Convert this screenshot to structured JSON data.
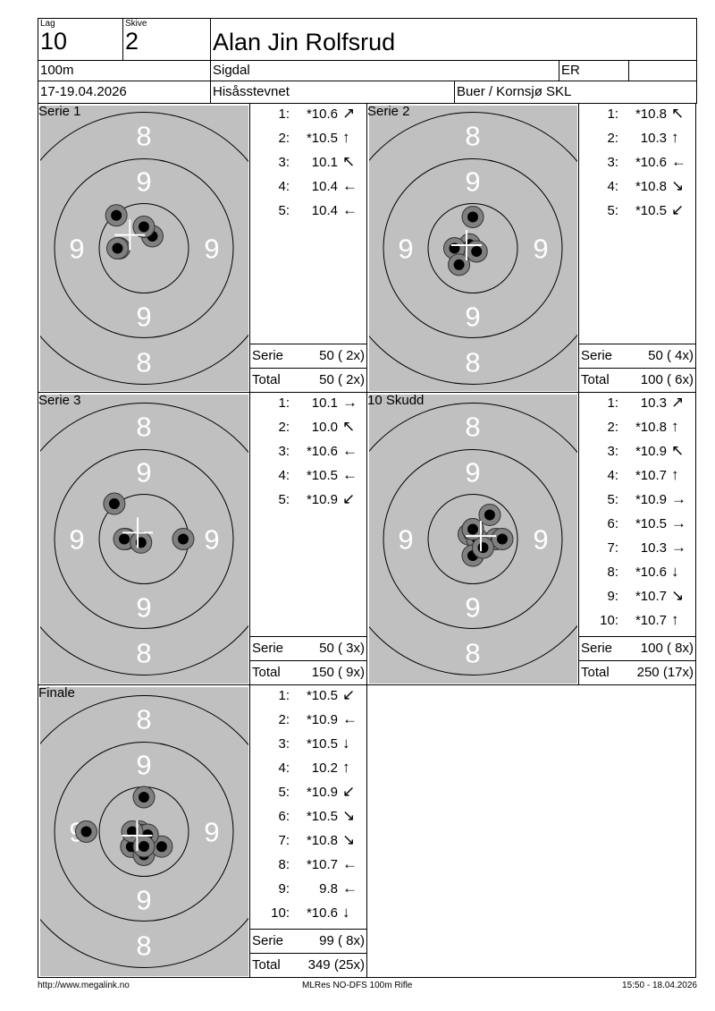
{
  "header": {
    "lag_label": "Lag",
    "lag": "10",
    "skive_label": "Skive",
    "skive": "2",
    "name": "Alan Jin Rolfsrud",
    "distance": "100m",
    "place": "Sigdal",
    "class": "ER",
    "class_extra": "",
    "date": "17-19.04.2026",
    "event": "Hisåsstevnet",
    "club": "Buer / Kornsjø SKL"
  },
  "target_labels": {
    "outer": "8",
    "inner": "9"
  },
  "colors": {
    "target": "#c0c0c0",
    "shot_ring": "#808080",
    "shot_core": "#000000",
    "cross": "#ffffff"
  },
  "panels": [
    {
      "title": "Serie 1",
      "shots": [
        {
          "n": "1:",
          "score": "*10.6",
          "dir": "↗"
        },
        {
          "n": "2:",
          "score": "*10.5",
          "dir": "↑"
        },
        {
          "n": "3:",
          "score": "10.1",
          "dir": "↖"
        },
        {
          "n": "4:",
          "score": "10.4",
          "dir": "←"
        },
        {
          "n": "5:",
          "score": "10.4",
          "dir": "←"
        }
      ],
      "serie_label": "Serie",
      "serie": "50 ( 2x)",
      "total_label": "Total",
      "total": "50 ( 2x)"
    },
    {
      "title": "Serie 2",
      "shots": [
        {
          "n": "1:",
          "score": "*10.8",
          "dir": "↖"
        },
        {
          "n": "2:",
          "score": "10.3",
          "dir": "↑"
        },
        {
          "n": "3:",
          "score": "*10.6",
          "dir": "←"
        },
        {
          "n": "4:",
          "score": "*10.8",
          "dir": "↘"
        },
        {
          "n": "5:",
          "score": "*10.5",
          "dir": "↙"
        }
      ],
      "serie_label": "Serie",
      "serie": "50 ( 4x)",
      "total_label": "Total",
      "total": "100 ( 6x)"
    },
    {
      "title": "Serie 3",
      "shots": [
        {
          "n": "1:",
          "score": "10.1",
          "dir": "→"
        },
        {
          "n": "2:",
          "score": "10.0",
          "dir": "↖"
        },
        {
          "n": "3:",
          "score": "*10.6",
          "dir": "←"
        },
        {
          "n": "4:",
          "score": "*10.5",
          "dir": "←"
        },
        {
          "n": "5:",
          "score": "*10.9",
          "dir": "↙"
        }
      ],
      "serie_label": "Serie",
      "serie": "50 ( 3x)",
      "total_label": "Total",
      "total": "150 ( 9x)"
    },
    {
      "title": "10 Skudd",
      "shots": [
        {
          "n": "1:",
          "score": "10.3",
          "dir": "↗"
        },
        {
          "n": "2:",
          "score": "*10.8",
          "dir": "↑"
        },
        {
          "n": "3:",
          "score": "*10.9",
          "dir": "↖"
        },
        {
          "n": "4:",
          "score": "*10.7",
          "dir": "↑"
        },
        {
          "n": "5:",
          "score": "*10.9",
          "dir": "→"
        },
        {
          "n": "6:",
          "score": "*10.5",
          "dir": "→"
        },
        {
          "n": "7:",
          "score": "10.3",
          "dir": "→"
        },
        {
          "n": "8:",
          "score": "*10.6",
          "dir": "↓"
        },
        {
          "n": "9:",
          "score": "*10.7",
          "dir": "↘"
        },
        {
          "n": "10:",
          "score": "*10.7",
          "dir": "↑"
        }
      ],
      "serie_label": "Serie",
      "serie": "100 ( 8x)",
      "total_label": "Total",
      "total": "250 (17x)"
    },
    {
      "title": "Finale",
      "shots": [
        {
          "n": "1:",
          "score": "*10.5",
          "dir": "↙"
        },
        {
          "n": "2:",
          "score": "*10.9",
          "dir": "←"
        },
        {
          "n": "3:",
          "score": "*10.5",
          "dir": "↓"
        },
        {
          "n": "4:",
          "score": "10.2",
          "dir": "↑"
        },
        {
          "n": "5:",
          "score": "*10.9",
          "dir": "↙"
        },
        {
          "n": "6:",
          "score": "*10.5",
          "dir": "↘"
        },
        {
          "n": "7:",
          "score": "*10.8",
          "dir": "↘"
        },
        {
          "n": "8:",
          "score": "*10.7",
          "dir": "←"
        },
        {
          "n": "9:",
          "score": "9.8",
          "dir": "←"
        },
        {
          "n": "10:",
          "score": "*10.6",
          "dir": "↓"
        }
      ],
      "serie_label": "Serie",
      "serie": "99 ( 8x)",
      "total_label": "Total",
      "total": "349 (25x)"
    }
  ],
  "footer": {
    "left": "http://www.megalink.no",
    "center": "MLRes NO-DFS 100m Rifle",
    "right": "15:50 - 18.04.2026"
  }
}
